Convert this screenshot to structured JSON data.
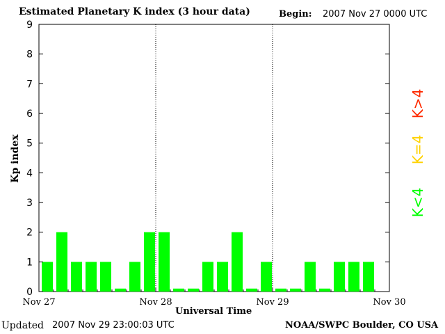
{
  "header": {
    "title": "Estimated Planetary K index (3 hour data)",
    "begin_label": "Begin:",
    "begin_value": "2007 Nov 27 0000 UTC"
  },
  "footer": {
    "updated_label": "Updated",
    "updated_value": "2007 Nov 29 23:00:03 UTC",
    "credit": "NOAA/SWPC Boulder, CO USA"
  },
  "legend": {
    "high": {
      "label": "K>4",
      "color": "#ff2a00"
    },
    "equal": {
      "label": "K=4",
      "color": "#ffd200"
    },
    "low": {
      "label": "K<4",
      "color": "#00ff00"
    }
  },
  "chart_data": {
    "type": "bar",
    "title": "Estimated Planetary K index (3 hour data)",
    "xlabel": "Universal Time",
    "ylabel": "Kp index",
    "ylim": [
      0,
      9
    ],
    "yticks": [
      0,
      1,
      2,
      3,
      4,
      5,
      6,
      7,
      8,
      9
    ],
    "x_range_days": [
      0,
      3
    ],
    "xtick_labels": [
      "Nov 27",
      "Nov 28",
      "Nov 29",
      "Nov 30"
    ],
    "day_divider_lines": "dotted",
    "interval_hours": 3,
    "bar_color": "#00ff00",
    "zero_bar_height": 0.1,
    "values": [
      1,
      2,
      1,
      1,
      1,
      0,
      1,
      2,
      2,
      0,
      0,
      1,
      1,
      2,
      0,
      1,
      0,
      0,
      1,
      0,
      1,
      1,
      1
    ]
  }
}
